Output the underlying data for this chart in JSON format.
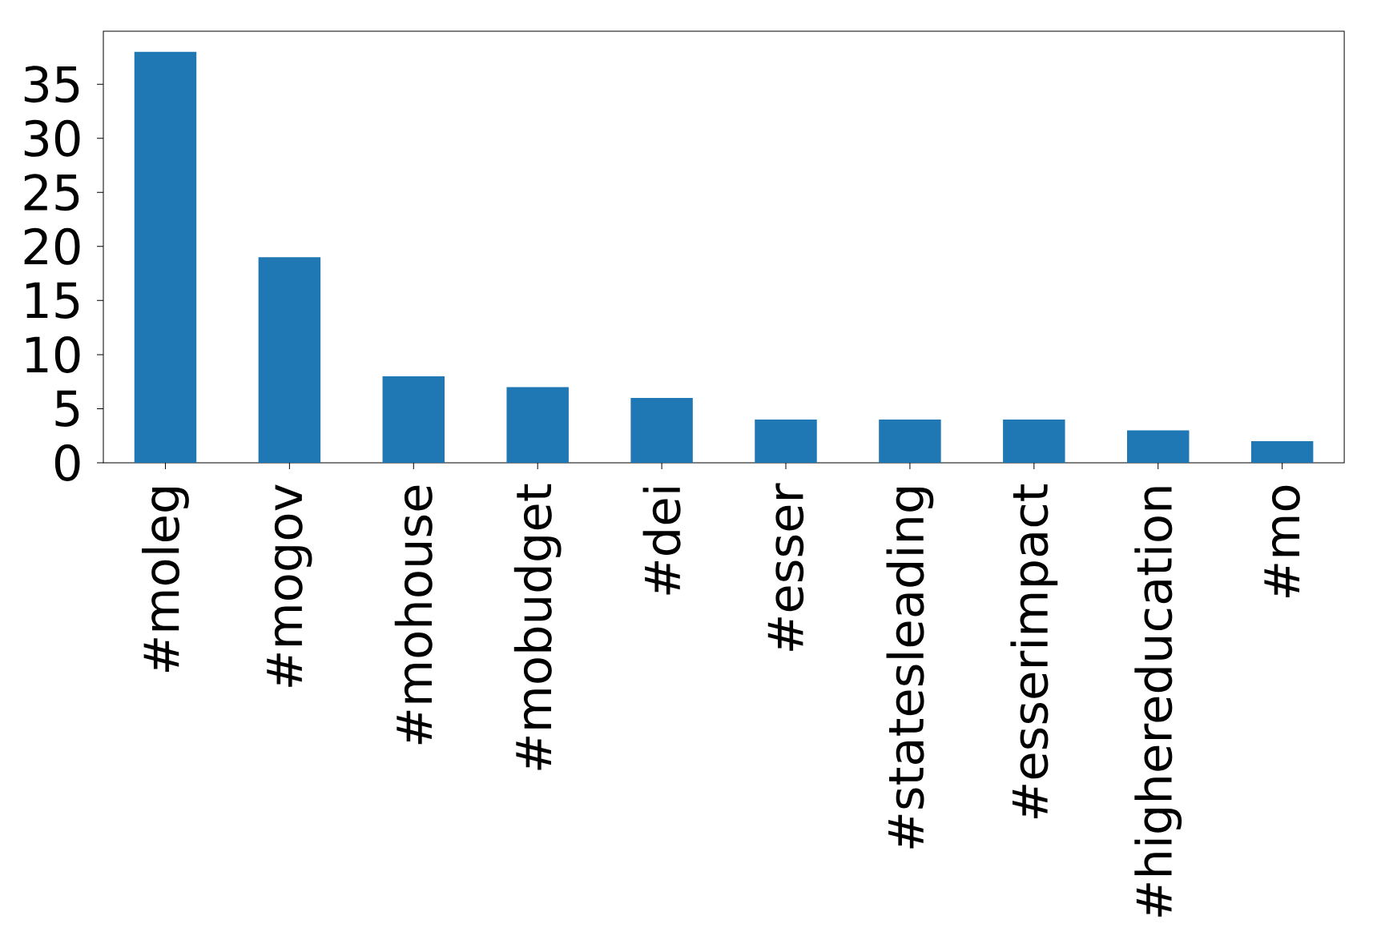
{
  "chart_data": {
    "type": "bar",
    "categories": [
      "#moleg",
      "#mogov",
      "#mohouse",
      "#mobudget",
      "#dei",
      "#esser",
      "#statesleading",
      "#esserimpact",
      "#highereducation",
      "#mo"
    ],
    "values": [
      38,
      19,
      8,
      7,
      6,
      4,
      4,
      4,
      3,
      2
    ],
    "color": "#1f77b4",
    "ylim": [
      0,
      39.9
    ],
    "yticks": [
      0,
      5,
      10,
      15,
      20,
      25,
      30,
      35
    ],
    "grid": false
  }
}
